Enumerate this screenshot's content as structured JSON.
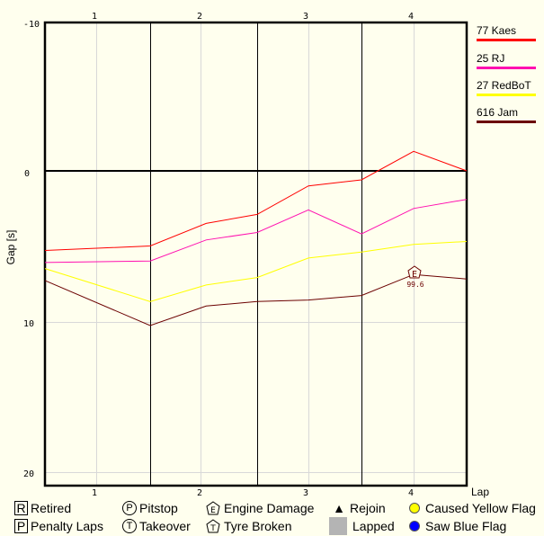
{
  "chart_data": {
    "type": "line",
    "title": "",
    "xlabel": "Lap",
    "ylabel": "Gap [s]",
    "ylim": [
      -10,
      20
    ],
    "y_inverted": true,
    "yticks": [
      -10,
      0,
      10,
      20
    ],
    "xticks": [
      1,
      2,
      3,
      4
    ],
    "grid": true,
    "legend_position": "right",
    "x": [
      0.5,
      1.5,
      2.05,
      2.5,
      3.0,
      3.5,
      4.0,
      4.5
    ],
    "series": [
      {
        "name": "77 Kaes",
        "color": "#ff0000",
        "values": [
          5.3,
          5.0,
          3.5,
          2.9,
          1.0,
          0.6,
          -1.3,
          0.0
        ]
      },
      {
        "name": "25 RJ",
        "color": "#ff10b0",
        "values": [
          6.1,
          6.0,
          4.6,
          4.1,
          2.6,
          4.2,
          2.5,
          1.9
        ]
      },
      {
        "name": "27 RedBoT",
        "color": "#ffff00",
        "values": [
          6.5,
          8.7,
          7.6,
          7.1,
          5.8,
          5.4,
          4.9,
          4.7
        ]
      },
      {
        "name": "616 Jam",
        "color": "#6b0000",
        "values": [
          7.3,
          10.3,
          9.0,
          8.7,
          8.6,
          8.3,
          6.9,
          7.2
        ]
      }
    ],
    "annotations": [
      {
        "series": "616 Jam",
        "lap": 4,
        "symbol": "E",
        "meaning": "Engine Damage",
        "label": "99.6"
      }
    ]
  },
  "axis": {
    "y_ticks": [
      "-10",
      "0",
      "10",
      "20"
    ],
    "x_ticks": [
      "1",
      "2",
      "3",
      "4"
    ],
    "y_label": "Gap [s]",
    "x_label": "Lap"
  },
  "legend": {
    "drivers": [
      {
        "label": "77 Kaes",
        "color": "#ff0000"
      },
      {
        "label": "25 RJ",
        "color": "#ff10b0"
      },
      {
        "label": "27 RedBoT",
        "color": "#ffff00"
      },
      {
        "label": "616 Jam",
        "color": "#6b0000"
      }
    ]
  },
  "marker_annotation": {
    "symbol": "E",
    "value": "99.6"
  },
  "symbol_key": {
    "row1": [
      {
        "symbol": "R",
        "label": "Retired"
      },
      {
        "symbol": "P",
        "label": "Pitstop"
      },
      {
        "symbol": "E",
        "label": "Engine Damage"
      },
      {
        "symbol": "▲",
        "label": "Rejoin"
      },
      {
        "symbol": "",
        "label": "Caused Yellow Flag",
        "color": "#ffff00"
      }
    ],
    "row2": [
      {
        "symbol": "P",
        "label": "Penalty Laps"
      },
      {
        "symbol": "T",
        "label": "Takeover"
      },
      {
        "symbol": "T",
        "label": "Tyre Broken"
      },
      {
        "symbol": "",
        "label": "Lapped",
        "color": "#b4b4b4"
      },
      {
        "symbol": "",
        "label": "Saw Blue Flag",
        "color": "#0000ff"
      }
    ]
  }
}
